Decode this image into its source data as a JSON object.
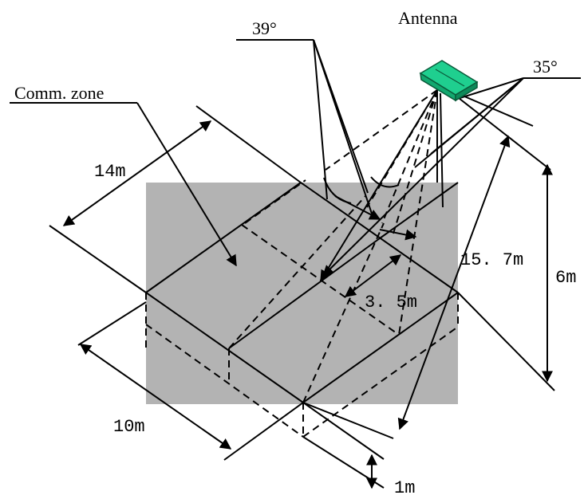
{
  "labels": {
    "antenna": "Antenna",
    "angle_39": "39°",
    "angle_35": "35°",
    "comm_zone": "Comm. zone",
    "width_14m": "14m",
    "length_10m": "10m",
    "dist_15_7m": "15. 7m",
    "height_6m": "6m",
    "offset_3_5m": "3. 5m",
    "height_1m": "1m"
  },
  "colors": {
    "zone_fill": "#b3b3b3",
    "antenna_fill": "#1fcf8f",
    "antenna_stroke": "#0a5a3a",
    "line": "#000000"
  }
}
